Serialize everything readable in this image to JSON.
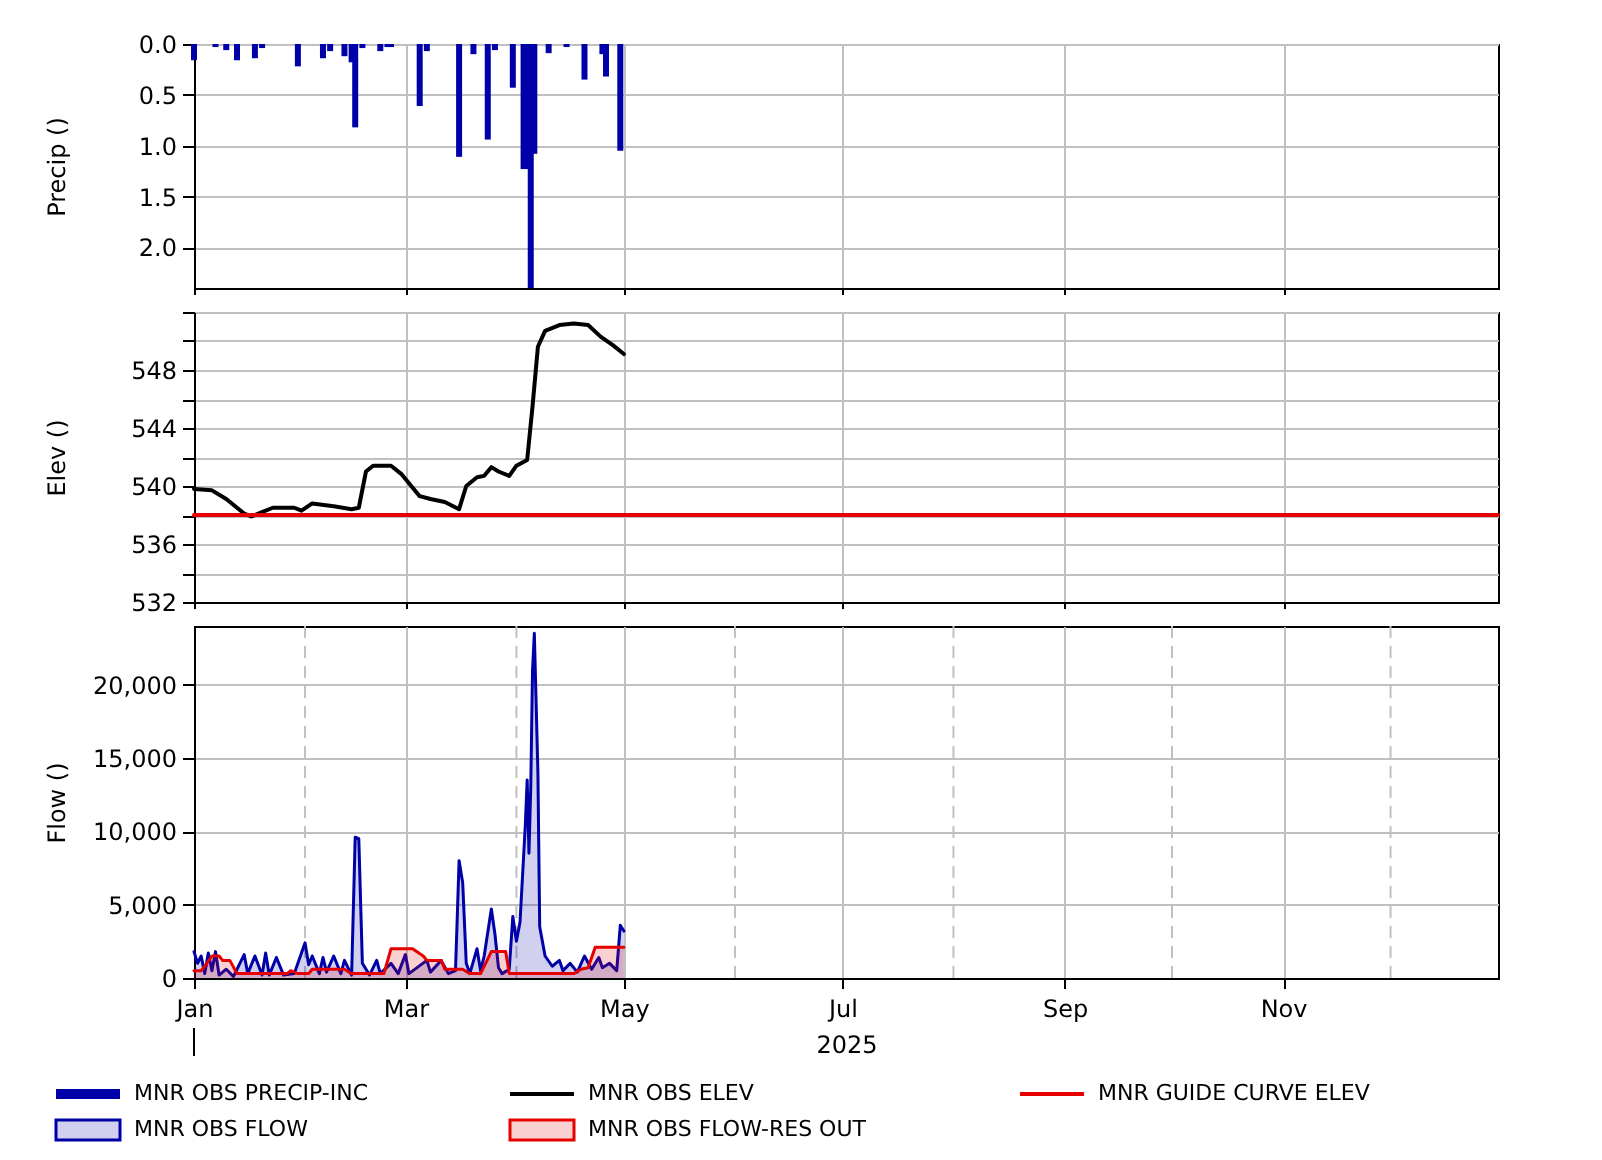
{
  "chart_data": [
    {
      "type": "bar",
      "ylabel": "Precip ()",
      "xlim": [
        "2025-01-01",
        "2025-12-31"
      ],
      "xticks": [
        "2025-01-01",
        "2025-03-01",
        "2025-05-01",
        "2025-07-01",
        "2025-09-01",
        "2025-11-01"
      ],
      "ylim": [
        2.4,
        0
      ],
      "yticks": [
        {
          "value": 0,
          "label": "0.0"
        },
        0.5,
        {
          "value": 1,
          "label": "1.0"
        },
        1.5,
        {
          "value": 2,
          "label": "2.0"
        }
      ],
      "grid": true,
      "legend": "bottom",
      "tick_labels": "y",
      "series": [
        {
          "name": "MNR OBS PRECIP-INC",
          "color": "#0000a8",
          "x": [
            "2025-01-01",
            "2025-01-07",
            "2025-01-10",
            "2025-01-13",
            "2025-01-18",
            "2025-01-20",
            "2025-01-30",
            "2025-02-06",
            "2025-02-08",
            "2025-02-12",
            "2025-02-14",
            "2025-02-15",
            "2025-02-17",
            "2025-02-22",
            "2025-02-24",
            "2025-02-25",
            "2025-03-05",
            "2025-03-07",
            "2025-03-16",
            "2025-03-20",
            "2025-03-24",
            "2025-03-26",
            "2025-03-31",
            "2025-04-03",
            "2025-04-04",
            "2025-04-05",
            "2025-04-06",
            "2025-04-10",
            "2025-04-15",
            "2025-04-20",
            "2025-04-25",
            "2025-04-26",
            "2025-04-30"
          ],
          "values": [
            0.16,
            0.03,
            0.06,
            0.16,
            0.14,
            0.04,
            0.22,
            0.14,
            0.07,
            0.12,
            0.18,
            0.82,
            0.04,
            0.07,
            0.03,
            0.03,
            0.61,
            0.07,
            1.11,
            0.1,
            0.94,
            0.06,
            0.43,
            1.23,
            1.23,
            2.4,
            1.08,
            0.09,
            0.03,
            0.35,
            0.1,
            0.32,
            1.05
          ]
        }
      ]
    },
    {
      "type": "line",
      "ylabel": "Elev ()",
      "xlim": [
        "2025-01-01",
        "2025-12-31"
      ],
      "xticks": [
        "2025-01-01",
        "2025-03-01",
        "2025-05-01",
        "2025-07-01",
        "2025-09-01",
        "2025-11-01"
      ],
      "ylim": [
        532,
        552
      ],
      "yticks": [
        532,
        {
          "value": 534,
          "label": null
        },
        536,
        {
          "value": 538,
          "label": null
        },
        540,
        {
          "value": 542,
          "label": null
        },
        544,
        {
          "value": 546,
          "label": null
        },
        548,
        {
          "value": 550,
          "label": null
        },
        {
          "value": 552,
          "label": null
        }
      ],
      "grid": true,
      "legend": "bottom",
      "tick_labels": "y",
      "series": [
        {
          "name": "MNR OBS ELEV",
          "color": "#000000",
          "x": [
            "2025-01-01",
            "2025-01-06",
            "2025-01-10",
            "2025-01-15",
            "2025-01-17",
            "2025-01-20",
            "2025-01-23",
            "2025-01-29",
            "2025-01-31",
            "2025-02-03",
            "2025-02-09",
            "2025-02-14",
            "2025-02-16",
            "2025-02-18",
            "2025-02-20",
            "2025-02-25",
            "2025-02-28",
            "2025-03-05",
            "2025-03-08",
            "2025-03-12",
            "2025-03-16",
            "2025-03-18",
            "2025-03-21",
            "2025-03-23",
            "2025-03-25",
            "2025-03-27",
            "2025-03-30",
            "2025-04-01",
            "2025-04-04",
            "2025-04-05T12:00",
            "2025-04-07",
            "2025-04-09",
            "2025-04-13",
            "2025-04-17",
            "2025-04-21",
            "2025-04-24T12:00",
            "2025-04-28",
            "2025-05-01"
          ],
          "values": [
            539.8,
            539.7,
            539.1,
            538.1,
            537.9,
            538.2,
            538.5,
            538.5,
            538.3,
            538.8,
            538.6,
            538.4,
            538.5,
            541.0,
            541.4,
            541.4,
            540.8,
            539.3,
            539.1,
            538.9,
            538.4,
            540.0,
            540.6,
            540.7,
            541.3,
            541.0,
            540.7,
            541.4,
            541.8,
            545.5,
            549.6,
            550.7,
            551.1,
            551.2,
            551.1,
            550.3,
            549.7,
            549.1
          ]
        },
        {
          "name": "MNR GUIDE CURVE ELEV",
          "color": "#e60000",
          "x": [
            "2025-01-01",
            "2025-12-31"
          ],
          "values": [
            538,
            538
          ]
        }
      ]
    },
    {
      "type": "area",
      "ylabel": "Flow ()",
      "xlabel": "2025",
      "xlim": [
        "2025-01-01",
        "2025-12-31"
      ],
      "xticks": [
        {
          "value": "2025-01-01",
          "label": "Jan"
        },
        {
          "value": "2025-03-01",
          "label": "Mar"
        },
        {
          "value": "2025-05-01",
          "label": "May"
        },
        {
          "value": "2025-07-01",
          "label": "Jul"
        },
        {
          "value": "2025-09-01",
          "label": "Sep"
        },
        {
          "value": "2025-11-01",
          "label": "Nov"
        }
      ],
      "ylim": [
        0,
        24000
      ],
      "yticks": [
        0,
        {
          "value": 5000,
          "label": "5,000"
        },
        {
          "value": 10000,
          "label": "10,000"
        },
        {
          "value": 15000,
          "label": "15,000"
        },
        {
          "value": 20000,
          "label": "20,000"
        }
      ],
      "grid": true,
      "legend": "bottom",
      "ref_lines": [
        {
          "axis": "x",
          "value": "2025-02-01",
          "color": "#c0c0c0",
          "line_style": "dashed"
        },
        {
          "axis": "x",
          "value": "2025-04-01",
          "color": "#c0c0c0",
          "line_style": "dashed"
        },
        {
          "axis": "x",
          "value": "2025-06-01",
          "color": "#c0c0c0",
          "line_style": "dashed"
        },
        {
          "axis": "x",
          "value": "2025-08-01",
          "color": "#c0c0c0",
          "line_style": "dashed"
        },
        {
          "axis": "x",
          "value": "2025-10-01",
          "color": "#c0c0c0",
          "line_style": "dashed"
        },
        {
          "axis": "x",
          "value": "2025-12-01",
          "color": "#c0c0c0",
          "line_style": "dashed"
        }
      ],
      "series": [
        {
          "name": "MNR OBS FLOW",
          "color": "#0000a8",
          "x": [
            "2025-01-01",
            "2025-01-02",
            "2025-01-03",
            "2025-01-04",
            "2025-01-05",
            "2025-01-06",
            "2025-01-07",
            "2025-01-08",
            "2025-01-10",
            "2025-01-12",
            "2025-01-15",
            "2025-01-16",
            "2025-01-18",
            "2025-01-20",
            "2025-01-21",
            "2025-01-22",
            "2025-01-24",
            "2025-01-26",
            "2025-01-29",
            "2025-02-01",
            "2025-02-02",
            "2025-02-03",
            "2025-02-05",
            "2025-02-06",
            "2025-02-07",
            "2025-02-09",
            "2025-02-11",
            "2025-02-12",
            "2025-02-14",
            "2025-02-15",
            "2025-02-16",
            "2025-02-17",
            "2025-02-19",
            "2025-02-21",
            "2025-02-22",
            "2025-02-25",
            "2025-02-27",
            "2025-03-01",
            "2025-03-02",
            "2025-03-07",
            "2025-03-08",
            "2025-03-11",
            "2025-03-13",
            "2025-03-15",
            "2025-03-16",
            "2025-03-17",
            "2025-03-18",
            "2025-03-19",
            "2025-03-21",
            "2025-03-22",
            "2025-03-23",
            "2025-03-25",
            "2025-03-26",
            "2025-03-27",
            "2025-03-28",
            "2025-03-30",
            "2025-03-31",
            "2025-04-01",
            "2025-04-02",
            "2025-04-03T12:00",
            "2025-04-04",
            "2025-04-04T12:00",
            "2025-04-05",
            "2025-04-05T12:00",
            "2025-04-06",
            "2025-04-07",
            "2025-04-07T12:00",
            "2025-04-09",
            "2025-04-11",
            "2025-04-13",
            "2025-04-14",
            "2025-04-16",
            "2025-04-18",
            "2025-04-20",
            "2025-04-22",
            "2025-04-24",
            "2025-04-25",
            "2025-04-27",
            "2025-04-29",
            "2025-04-30",
            "2025-05-01"
          ],
          "values": [
            1800,
            1000,
            1500,
            300,
            1700,
            500,
            1800,
            200,
            600,
            100,
            1600,
            300,
            1500,
            200,
            1700,
            200,
            1400,
            200,
            300,
            2400,
            900,
            1500,
            300,
            1400,
            400,
            1500,
            300,
            1200,
            200,
            9600,
            9500,
            1000,
            200,
            1200,
            300,
            1000,
            300,
            1600,
            300,
            1200,
            400,
            1200,
            300,
            500,
            8000,
            6500,
            1000,
            300,
            2000,
            500,
            1500,
            4700,
            3000,
            700,
            300,
            600,
            4200,
            2500,
            3800,
            10500,
            13500,
            8500,
            13000,
            21000,
            23500,
            14000,
            3500,
            1500,
            800,
            1200,
            500,
            1000,
            400,
            1500,
            600,
            1400,
            700,
            1000,
            500,
            3600,
            3200
          ]
        },
        {
          "name": "MNR OBS FLOW-RES OUT",
          "color": "#e60000",
          "x": [
            "2025-01-01",
            "2025-01-03",
            "2025-01-04",
            "2025-01-06",
            "2025-01-08",
            "2025-01-09",
            "2025-01-11",
            "2025-01-13",
            "2025-01-27",
            "2025-01-28",
            "2025-01-30",
            "2025-02-02",
            "2025-02-03",
            "2025-02-12",
            "2025-02-14",
            "2025-02-23",
            "2025-02-25",
            "2025-03-03",
            "2025-03-06",
            "2025-03-07",
            "2025-03-11",
            "2025-03-12",
            "2025-03-17",
            "2025-03-19",
            "2025-03-22",
            "2025-03-25",
            "2025-03-29",
            "2025-03-30",
            "2025-04-17",
            "2025-04-19",
            "2025-04-21",
            "2025-04-23",
            "2025-05-01"
          ],
          "values": [
            500,
            500,
            800,
            1500,
            1500,
            1200,
            1200,
            300,
            300,
            500,
            300,
            300,
            600,
            600,
            300,
            300,
            2000,
            2000,
            1500,
            1200,
            1200,
            600,
            600,
            300,
            300,
            1800,
            1800,
            300,
            300,
            600,
            700,
            2100,
            2100
          ]
        }
      ]
    }
  ]
}
